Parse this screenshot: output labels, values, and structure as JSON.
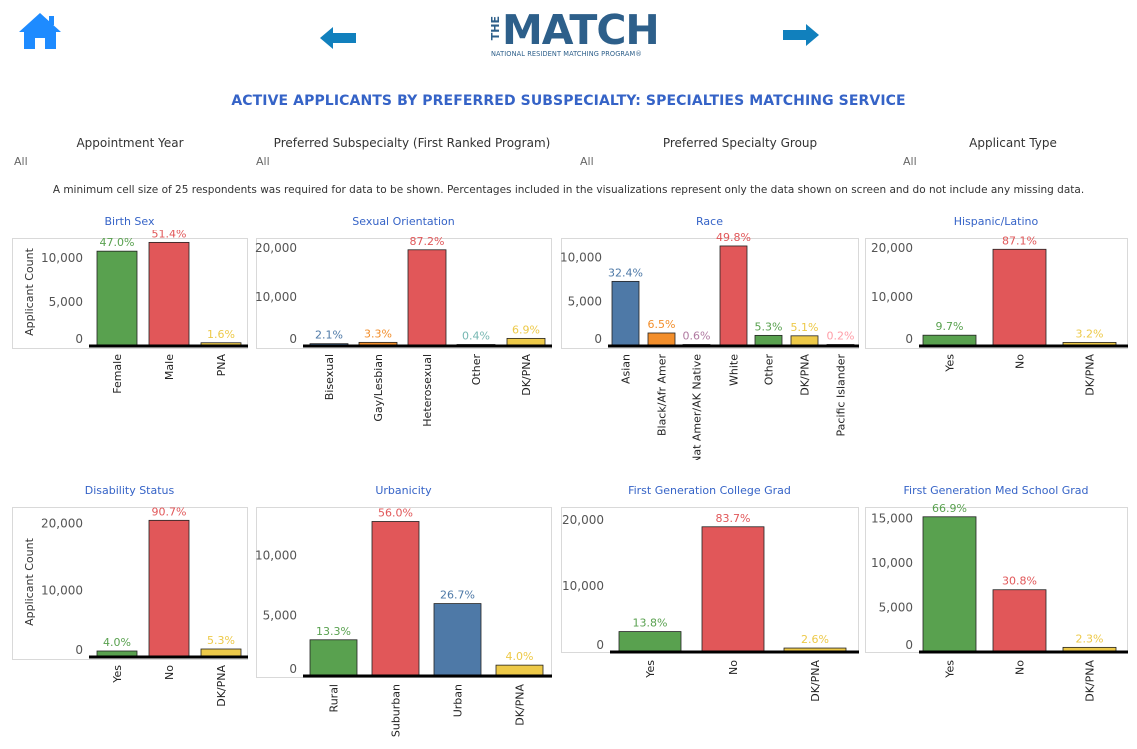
{
  "header": {
    "logo": {
      "main": "MATCH",
      "prefix": "THE",
      "subtitle": "NATIONAL RESIDENT MATCHING PROGRAM®"
    },
    "title": "ACTIVE APPLICANTS BY PREFERRED SUBSPECIALTY: SPECIALTIES MATCHING SERVICE",
    "icons": {
      "home": "home-icon",
      "back": "arrow-left-icon",
      "forward": "arrow-right-icon"
    },
    "colors": {
      "home": "#1e8bff",
      "arrow": "#1180bd",
      "title": "#3563c7",
      "logo": "#2d5f8a"
    }
  },
  "filters": [
    {
      "label": "Appointment Year",
      "value": "All"
    },
    {
      "label": "Preferred Subspecialty (First Ranked Program)",
      "value": "All"
    },
    {
      "label": "Preferred Specialty Group",
      "value": "All"
    },
    {
      "label": "Applicant Type",
      "value": "All"
    }
  ],
  "note": "A minimum cell size of 25 respondents was required for data to be shown. Percentages included in the visualizations represent only the data shown on screen and do not include any missing data.",
  "colors": {
    "green": "#59a14f",
    "red": "#e15759",
    "blue": "#4e79a7",
    "orange": "#f28e2b",
    "purple": "#b07aa1",
    "teal": "#76b7b2",
    "yellow": "#edc948",
    "pink": "#ff9da7"
  },
  "chart_data": [
    {
      "type": "bar",
      "title": "Birth Sex",
      "ylabel": "Applicant Count",
      "ylim": [
        0,
        12300
      ],
      "yticks": [
        0,
        5000,
        10000
      ],
      "grid": false,
      "categories": [
        "Female",
        "Male",
        "PNA"
      ],
      "values": [
        10800,
        11800,
        370
      ],
      "labels": [
        "47.0%",
        "51.4%",
        "1.6%"
      ],
      "colors": [
        "#59a14f",
        "#e15759",
        "#edc948"
      ]
    },
    {
      "type": "bar",
      "title": "Sexual Orientation",
      "ylabel": "",
      "ylim": [
        0,
        22000
      ],
      "yticks": [
        0,
        10000,
        20000
      ],
      "grid": false,
      "categories": [
        "Bisexual",
        "Gay/Lesbian",
        "Heterosexual",
        "Other",
        "DK/PNA"
      ],
      "values": [
        470,
        740,
        19600,
        90,
        1550
      ],
      "labels": [
        "2.1%",
        "3.3%",
        "87.2%",
        "0.4%",
        "6.9%"
      ],
      "colors": [
        "#4e79a7",
        "#f28e2b",
        "#e15759",
        "#76b7b2",
        "#edc948"
      ]
    },
    {
      "type": "bar",
      "title": "Race",
      "ylabel": "",
      "ylim": [
        0,
        12200
      ],
      "yticks": [
        0,
        5000,
        10000
      ],
      "grid": false,
      "categories": [
        "Asian",
        "Black/Afr Amer",
        "Nat Amer/AK Native",
        "White",
        "Other",
        "DK/PNA",
        "Pacific Islander"
      ],
      "values": [
        7300,
        1470,
        140,
        11300,
        1200,
        1150,
        45
      ],
      "labels": [
        "32.4%",
        "6.5%",
        "0.6%",
        "49.8%",
        "5.3%",
        "5.1%",
        "0.2%"
      ],
      "colors": [
        "#4e79a7",
        "#f28e2b",
        "#b07aa1",
        "#e15759",
        "#59a14f",
        "#edc948",
        "#ff9da7"
      ]
    },
    {
      "type": "bar",
      "title": "Hispanic/Latino",
      "ylabel": "",
      "ylim": [
        0,
        22000
      ],
      "yticks": [
        0,
        10000,
        20000
      ],
      "grid": false,
      "categories": [
        "Yes",
        "No",
        "DK/PNA"
      ],
      "values": [
        2200,
        19700,
        730
      ],
      "labels": [
        "9.7%",
        "87.1%",
        "3.2%"
      ],
      "colors": [
        "#59a14f",
        "#e15759",
        "#edc948"
      ]
    },
    {
      "type": "bar",
      "title": "Disability Status",
      "ylabel": "Applicant Count",
      "ylim": [
        0,
        22500
      ],
      "yticks": [
        0,
        10000,
        20000
      ],
      "grid": false,
      "categories": [
        "Yes",
        "No",
        "DK/PNA"
      ],
      "values": [
        900,
        20500,
        1200
      ],
      "labels": [
        "4.0%",
        "90.7%",
        "5.3%"
      ],
      "colors": [
        "#59a14f",
        "#e15759",
        "#edc948"
      ]
    },
    {
      "type": "bar",
      "title": "Urbanicity",
      "ylabel": "",
      "ylim": [
        0,
        14000
      ],
      "yticks": [
        0,
        5000,
        10000
      ],
      "grid": false,
      "categories": [
        "Rural",
        "Suburban",
        "Urban",
        "DK/PNA"
      ],
      "values": [
        3000,
        12800,
        6000,
        900
      ],
      "labels": [
        "13.3%",
        "56.0%",
        "26.7%",
        "4.0%"
      ],
      "colors": [
        "#59a14f",
        "#e15759",
        "#4e79a7",
        "#edc948"
      ]
    },
    {
      "type": "bar",
      "title": "First Generation College Grad",
      "ylabel": "",
      "ylim": [
        0,
        22000
      ],
      "yticks": [
        0,
        10000,
        20000
      ],
      "grid": false,
      "categories": [
        "Yes",
        "No",
        "DK/PNA"
      ],
      "values": [
        3100,
        19000,
        600
      ],
      "labels": [
        "13.8%",
        "83.7%",
        "2.6%"
      ],
      "colors": [
        "#59a14f",
        "#e15759",
        "#edc948"
      ]
    },
    {
      "type": "bar",
      "title": "First Generation Med School Grad",
      "ylabel": "",
      "ylim": [
        0,
        16300
      ],
      "yticks": [
        0,
        5000,
        10000,
        15000
      ],
      "grid": false,
      "categories": [
        "Yes",
        "No",
        "DK/PNA"
      ],
      "values": [
        15200,
        7000,
        520
      ],
      "labels": [
        "66.9%",
        "30.8%",
        "2.3%"
      ],
      "colors": [
        "#59a14f",
        "#e15759",
        "#edc948"
      ]
    }
  ]
}
